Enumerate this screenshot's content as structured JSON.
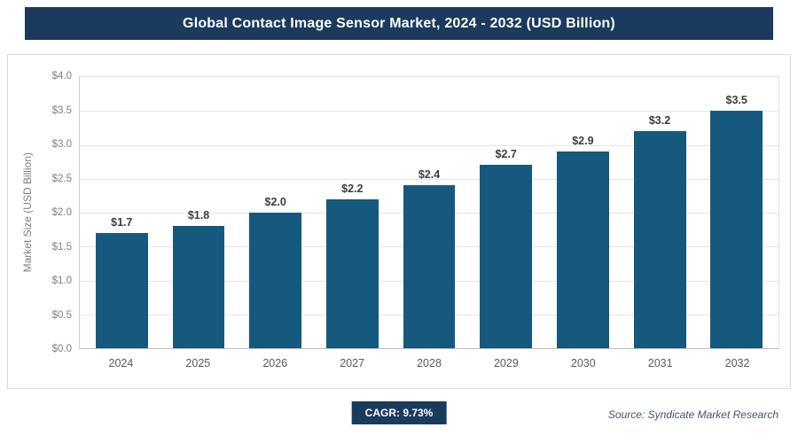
{
  "header": {
    "title": "Global Contact Image Sensor Market, 2024 - 2032 (USD Billion)",
    "bg_color": "#1a3a5e"
  },
  "chart_data": {
    "type": "bar",
    "title": "Global Contact Image Sensor Market, 2024 - 2032 (USD Billion)",
    "categories": [
      "2024",
      "2025",
      "2026",
      "2027",
      "2028",
      "2029",
      "2030",
      "2031",
      "2032"
    ],
    "values": [
      1.7,
      1.8,
      2.0,
      2.2,
      2.4,
      2.7,
      2.9,
      3.2,
      3.5
    ],
    "bar_labels": [
      "$1.7",
      "$1.8",
      "$2.0",
      "$2.2",
      "$2.4",
      "$2.7",
      "$2.9",
      "$3.2",
      "$3.5"
    ],
    "xlabel": "",
    "ylabel": "Market Size (USD Billion)",
    "ylim": [
      0,
      4.0
    ],
    "y_ticks": [
      "$0.0",
      "$0.5",
      "$1.0",
      "$1.5",
      "$2.0",
      "$2.5",
      "$3.0",
      "$3.5",
      "$4.0"
    ],
    "grid": true,
    "legend": "none",
    "bar_color": "#15597e"
  },
  "footer": {
    "cagr_label": "CAGR: 9.73%",
    "source": "Source: Syndicate Market Research"
  }
}
